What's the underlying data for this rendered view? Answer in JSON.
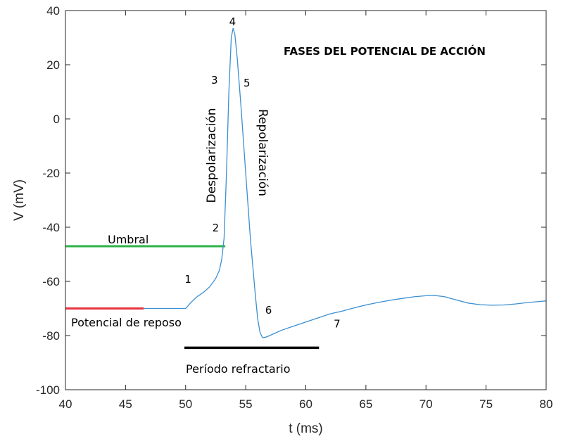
{
  "chart_data": {
    "type": "line",
    "title": "FASES DEL POTENCIAL DE ACCIÓN",
    "xlabel": "t (ms)",
    "ylabel": "V (mV)",
    "xlim": [
      40,
      80
    ],
    "ylim": [
      -100,
      40
    ],
    "xticks": [
      "40",
      "45",
      "50",
      "55",
      "60",
      "65",
      "70",
      "75",
      "80"
    ],
    "yticks": [
      "40",
      "20",
      "0",
      "-20",
      "-40",
      "-60",
      "-80",
      "-100"
    ],
    "grid": false,
    "series": [
      {
        "color": "#3b8fd1",
        "x": [
          50.0,
          50.5,
          51.0,
          51.5,
          52.0,
          52.5,
          52.8,
          53.0,
          53.2,
          53.4,
          53.6,
          53.8,
          53.95,
          54.1,
          54.3,
          54.6,
          55.0,
          55.4,
          55.8,
          56.0,
          56.2,
          56.4,
          56.6,
          57.0,
          57.5,
          58.0,
          59.0,
          60.0,
          61.0,
          62.0,
          63.0,
          64.0,
          65.0,
          66.0,
          67.0,
          68.0,
          69.0,
          70.0,
          70.7,
          71.5,
          72.5,
          73.5,
          74.5,
          75.5,
          76.5,
          77.5,
          78.5,
          79.5,
          80.0
        ],
        "y": [
          -70.0,
          -67.5,
          -65.5,
          -64.0,
          -62.0,
          -59.0,
          -56.0,
          -52.0,
          -44.0,
          -20.0,
          10.0,
          30.0,
          33.5,
          31.0,
          22.0,
          5.0,
          -20.0,
          -45.0,
          -65.0,
          -74.0,
          -79.0,
          -80.8,
          -80.7,
          -80.0,
          -79.0,
          -78.0,
          -76.5,
          -75.0,
          -73.5,
          -72.0,
          -71.0,
          -69.8,
          -68.7,
          -67.8,
          -67.0,
          -66.3,
          -65.7,
          -65.3,
          -65.2,
          -65.6,
          -66.8,
          -68.0,
          -68.6,
          -68.8,
          -68.7,
          -68.3,
          -67.8,
          -67.4,
          -67.2
        ]
      }
    ],
    "annotations": {
      "threshold": {
        "label": "Umbral",
        "color": "#2db34a",
        "x": [
          40,
          53.3
        ],
        "y": -47
      },
      "resting": {
        "label": "Potencial de reposo",
        "color": "#e8323c",
        "x": [
          40,
          46.5
        ],
        "y": -70,
        "trace_x": [
          46.5,
          50
        ],
        "trace_color": "#3b8fd1"
      },
      "refractory": {
        "label": "Período refractario",
        "color": "#000000",
        "x": [
          49.9,
          61.1
        ],
        "y": -84.5
      },
      "depolarization": "Despolarización",
      "repolarization": "Repolarización",
      "phases": [
        {
          "label": "1",
          "x": 50.2,
          "y": -60.5
        },
        {
          "label": "2",
          "x": 52.5,
          "y": -41.5
        },
        {
          "label": "3",
          "x": 52.4,
          "y": 13
        },
        {
          "label": "4",
          "x": 53.9,
          "y": 34.5
        },
        {
          "label": "5",
          "x": 55.1,
          "y": 12
        },
        {
          "label": "6",
          "x": 56.9,
          "y": -72
        },
        {
          "label": "7",
          "x": 62.6,
          "y": -77
        }
      ]
    }
  }
}
